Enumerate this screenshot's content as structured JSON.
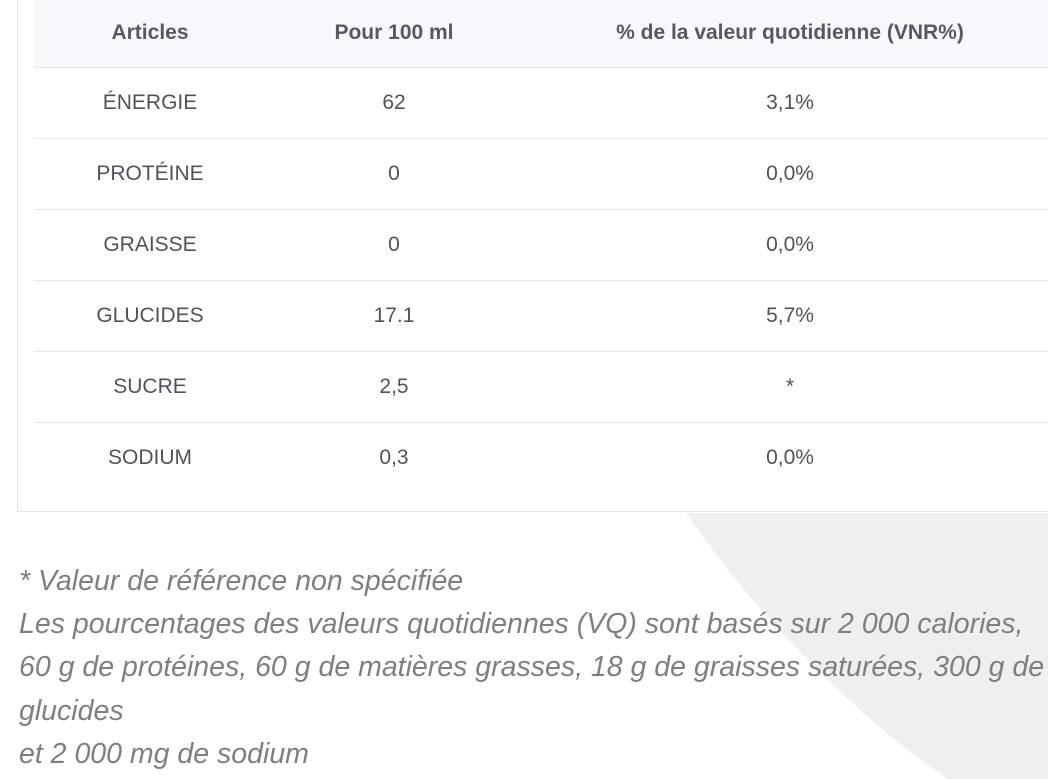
{
  "table": {
    "headers": {
      "item": "Articles",
      "per_100ml": "Pour 100 ml",
      "daily_value": "% de la valeur quotidienne (VNR%)"
    },
    "rows": [
      {
        "item": "ÉNERGIE",
        "per_100ml": "62",
        "daily_value": "3,1%"
      },
      {
        "item": "PROTÉINE",
        "per_100ml": "0",
        "daily_value": "0,0%"
      },
      {
        "item": "GRAISSE",
        "per_100ml": "0",
        "daily_value": "0,0%"
      },
      {
        "item": "GLUCIDES",
        "per_100ml": "17.1",
        "daily_value": "5,7%"
      },
      {
        "item": "SUCRE",
        "per_100ml": "2,5",
        "daily_value": "*"
      },
      {
        "item": "SODIUM",
        "per_100ml": "0,3",
        "daily_value": "0,0%"
      }
    ]
  },
  "notes": {
    "reference": "* Valeur de référence non spécifiée",
    "basis_line1": "Les pourcentages des valeurs quotidiennes (VQ) sont basés sur 2 000 calories, 60 g de protéines, 60 g de matières grasses, 18 g de graisses saturées, 300 g de glucides",
    "basis_line2": "et 2 000 mg de sodium"
  },
  "colors": {
    "header_bg": "#f6f8fb",
    "text": "#4f545b",
    "note_text": "#7d7f83",
    "swoosh": "#efefef"
  }
}
